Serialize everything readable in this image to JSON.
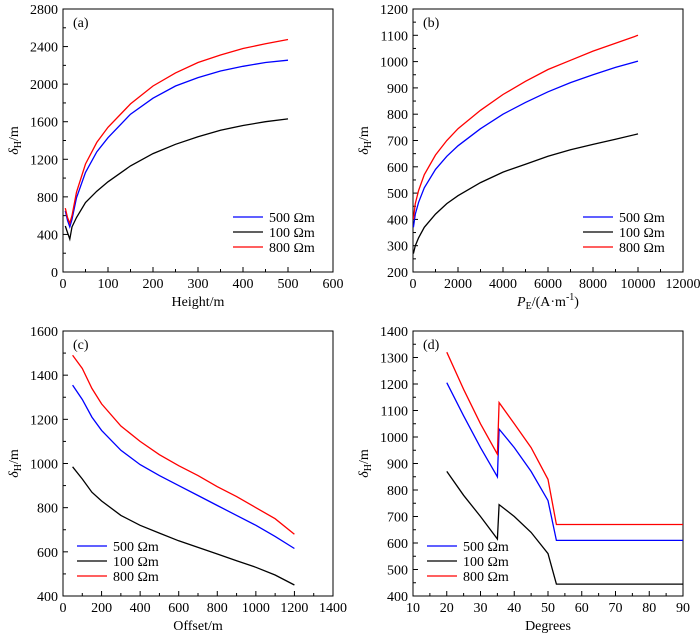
{
  "chart_data": [
    {
      "type": "line",
      "panel": "(a)",
      "xlabel": "Height/m",
      "ylabel_main": "δ",
      "ylabel_sub": "H",
      "ylabel_unit": "/m",
      "xlim": [
        0,
        600
      ],
      "ylim": [
        0,
        2800
      ],
      "xticks": [
        0,
        100,
        200,
        300,
        400,
        500,
        600
      ],
      "yticks": [
        0,
        400,
        800,
        1200,
        1600,
        2000,
        2400,
        2800
      ],
      "legend": {
        "position": "bottom-right"
      },
      "series": [
        {
          "name": "500 Ωm",
          "color": "#0000ff",
          "x": [
            5,
            10,
            15,
            20,
            30,
            50,
            75,
            100,
            150,
            200,
            250,
            300,
            350,
            400,
            450,
            500
          ],
          "y": [
            650,
            550,
            480,
            560,
            790,
            1060,
            1280,
            1430,
            1680,
            1850,
            1980,
            2070,
            2140,
            2190,
            2230,
            2255
          ]
        },
        {
          "name": "100 Ωm",
          "color": "#000000",
          "x": [
            5,
            10,
            15,
            20,
            30,
            50,
            75,
            100,
            150,
            200,
            250,
            300,
            350,
            400,
            450,
            500
          ],
          "y": [
            490,
            420,
            350,
            480,
            580,
            740,
            860,
            960,
            1130,
            1260,
            1360,
            1440,
            1510,
            1560,
            1600,
            1630
          ]
        },
        {
          "name": "800 Ωm",
          "color": "#ff0000",
          "x": [
            5,
            10,
            15,
            20,
            30,
            50,
            75,
            100,
            150,
            200,
            250,
            300,
            350,
            400,
            450,
            500
          ],
          "y": [
            680,
            580,
            520,
            600,
            850,
            1150,
            1380,
            1540,
            1790,
            1980,
            2120,
            2230,
            2310,
            2380,
            2430,
            2475
          ]
        }
      ]
    },
    {
      "type": "line",
      "panel": "(b)",
      "xlabel_main": "P",
      "xlabel_sub": "E",
      "xlabel_unit": "/(A·m",
      "xlabel_sup": "-1",
      "xlabel_close": ")",
      "ylabel_main": "δ",
      "ylabel_sub": "H",
      "ylabel_unit": "/m",
      "xlim": [
        0,
        12000
      ],
      "ylim": [
        200,
        1200
      ],
      "xticks": [
        0,
        2000,
        4000,
        6000,
        8000,
        10000,
        12000
      ],
      "yticks": [
        200,
        300,
        400,
        500,
        600,
        700,
        800,
        900,
        1000,
        1100,
        1200
      ],
      "legend": {
        "position": "bottom-right"
      },
      "series": [
        {
          "name": "500 Ωm",
          "color": "#0000ff",
          "x": [
            20,
            100,
            250,
            500,
            1000,
            1500,
            2000,
            3000,
            4000,
            5000,
            6000,
            7000,
            8000,
            9000,
            10000
          ],
          "y": [
            370,
            420,
            465,
            520,
            590,
            640,
            680,
            745,
            800,
            845,
            885,
            920,
            950,
            978,
            1002
          ]
        },
        {
          "name": "100 Ωm",
          "color": "#000000",
          "x": [
            20,
            100,
            250,
            500,
            1000,
            1500,
            2000,
            3000,
            4000,
            5000,
            6000,
            7000,
            8000,
            9000,
            10000
          ],
          "y": [
            270,
            300,
            330,
            370,
            420,
            460,
            490,
            540,
            580,
            610,
            640,
            665,
            685,
            705,
            725
          ]
        },
        {
          "name": "800 Ωm",
          "color": "#ff0000",
          "x": [
            20,
            100,
            250,
            500,
            1000,
            1500,
            2000,
            3000,
            4000,
            5000,
            6000,
            7000,
            8000,
            9000,
            10000
          ],
          "y": [
            400,
            460,
            510,
            570,
            645,
            700,
            745,
            815,
            875,
            925,
            970,
            1005,
            1040,
            1070,
            1100
          ]
        }
      ]
    },
    {
      "type": "line",
      "panel": "(c)",
      "xlabel": "Offset/m",
      "ylabel_main": "δ",
      "ylabel_sub": "H",
      "ylabel_unit": "/m",
      "xlim": [
        0,
        1400
      ],
      "ylim": [
        400,
        1600
      ],
      "xticks": [
        0,
        200,
        400,
        600,
        800,
        1000,
        1200,
        1400
      ],
      "yticks": [
        400,
        600,
        800,
        1000,
        1200,
        1400,
        1600
      ],
      "legend": {
        "position": "bottom-left"
      },
      "series": [
        {
          "name": "500 Ωm",
          "color": "#0000ff",
          "x": [
            50,
            100,
            150,
            200,
            300,
            400,
            500,
            600,
            700,
            800,
            900,
            1000,
            1100,
            1200
          ],
          "y": [
            1355,
            1290,
            1210,
            1150,
            1060,
            995,
            945,
            900,
            855,
            810,
            765,
            720,
            670,
            615
          ]
        },
        {
          "name": "100 Ωm",
          "color": "#000000",
          "x": [
            50,
            100,
            150,
            200,
            300,
            400,
            500,
            600,
            700,
            800,
            900,
            1000,
            1100,
            1200
          ],
          "y": [
            985,
            930,
            870,
            830,
            765,
            720,
            685,
            650,
            620,
            590,
            560,
            530,
            495,
            450
          ]
        },
        {
          "name": "800 Ωm",
          "color": "#ff0000",
          "x": [
            50,
            100,
            150,
            200,
            300,
            400,
            500,
            600,
            700,
            800,
            900,
            1000,
            1100,
            1200
          ],
          "y": [
            1490,
            1430,
            1340,
            1270,
            1170,
            1100,
            1040,
            990,
            945,
            895,
            850,
            800,
            750,
            680
          ]
        }
      ]
    },
    {
      "type": "line",
      "panel": "(d)",
      "xlabel": "Degrees",
      "ylabel_main": "δ",
      "ylabel_sub": "H",
      "ylabel_unit": "/m",
      "xlim": [
        10,
        90
      ],
      "ylim": [
        400,
        1400
      ],
      "xticks": [
        10,
        20,
        30,
        40,
        50,
        60,
        70,
        80,
        90
      ],
      "yticks": [
        400,
        500,
        600,
        700,
        800,
        900,
        1000,
        1100,
        1200,
        1300,
        1400
      ],
      "legend": {
        "position": "bottom-left"
      },
      "series": [
        {
          "name": "500 Ωm",
          "color": "#0000ff",
          "x": [
            20,
            25,
            30,
            35,
            35.5,
            40,
            45,
            50,
            52.5,
            60,
            70,
            80,
            90
          ],
          "y": [
            1205,
            1080,
            960,
            850,
            1030,
            960,
            870,
            760,
            610,
            610,
            610,
            610,
            610
          ]
        },
        {
          "name": "100 Ωm",
          "color": "#000000",
          "x": [
            20,
            25,
            30,
            35,
            35.5,
            40,
            45,
            50,
            52.5,
            60,
            70,
            80,
            90
          ],
          "y": [
            870,
            780,
            700,
            615,
            745,
            700,
            640,
            560,
            445,
            445,
            445,
            445,
            445
          ]
        },
        {
          "name": "800 Ωm",
          "color": "#ff0000",
          "x": [
            20,
            25,
            30,
            35,
            35.5,
            40,
            45,
            50,
            52.5,
            60,
            70,
            80,
            90
          ],
          "y": [
            1320,
            1180,
            1050,
            935,
            1130,
            1050,
            960,
            840,
            670,
            670,
            670,
            670,
            670
          ]
        }
      ]
    }
  ]
}
